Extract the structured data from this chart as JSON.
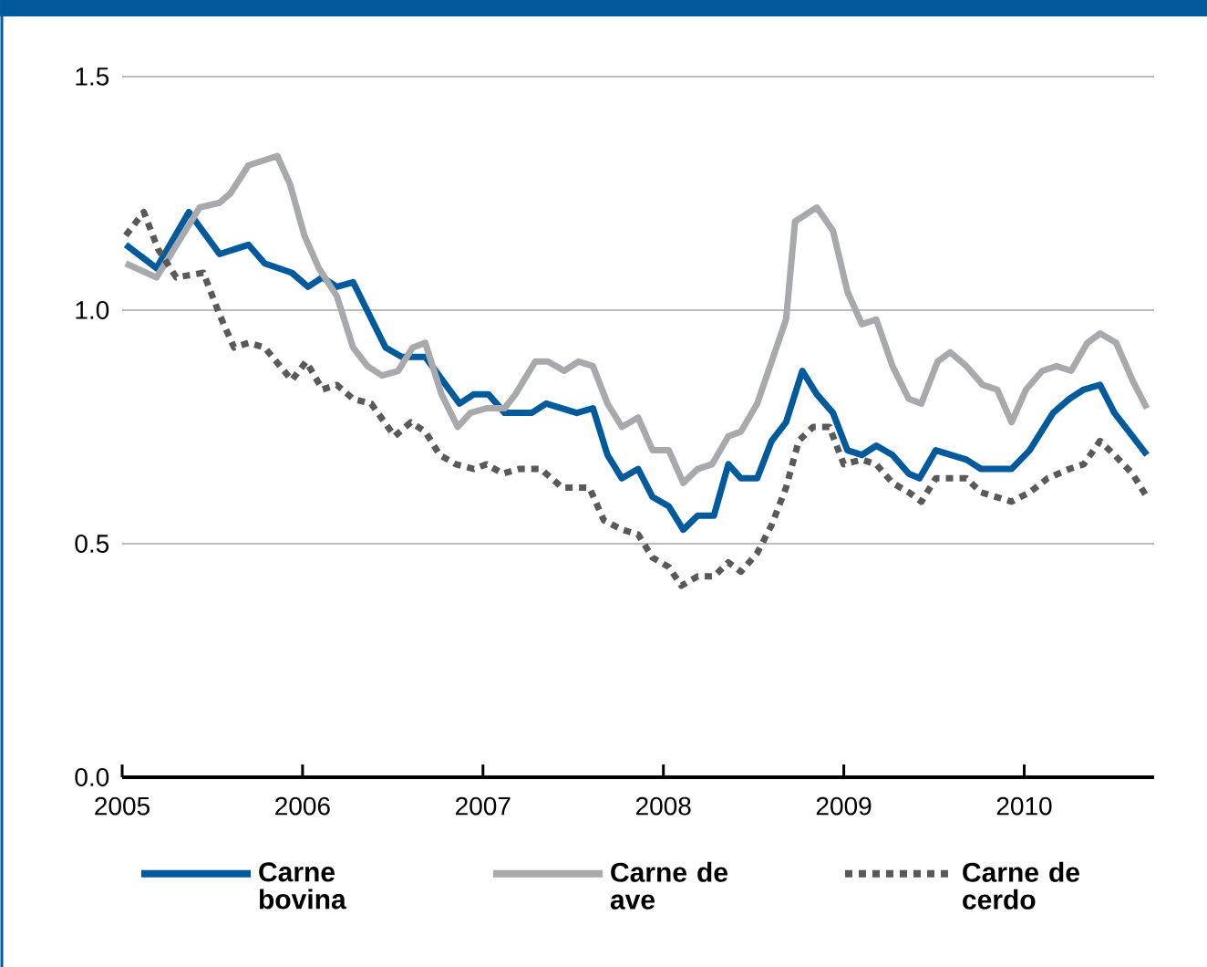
{
  "chart_data": {
    "type": "line",
    "xlim": [
      2005,
      2010.72
    ],
    "xticks": [
      2005,
      2006,
      2007,
      2008,
      2009,
      2010
    ],
    "ylim": [
      0,
      1.5
    ],
    "yticks": [
      {
        "value": 0,
        "label": "0.0"
      },
      {
        "value": 0.5,
        "label": "0.5"
      },
      {
        "value": 1,
        "label": "1.0"
      },
      {
        "value": 1.5,
        "label": "1.5"
      }
    ],
    "grid": "y",
    "legend": "bottom",
    "series": [
      {
        "name": "Carne bovina",
        "color": "#005a9c",
        "line_style": "solid",
        "x": [
          2005.02,
          2005.19,
          2005.37,
          2005.54,
          2005.7,
          2005.79,
          2005.94,
          2006.03,
          2006.11,
          2006.19,
          2006.28,
          2006.46,
          2006.55,
          2006.68,
          2006.87,
          2006.95,
          2007.03,
          2007.12,
          2007.27,
          2007.35,
          2007.52,
          2007.61,
          2007.69,
          2007.77,
          2007.86,
          2007.94,
          2008.03,
          2008.11,
          2008.19,
          2008.28,
          2008.36,
          2008.43,
          2008.52,
          2008.6,
          2008.68,
          2008.77,
          2008.85,
          2008.94,
          2009.02,
          2009.1,
          2009.18,
          2009.27,
          2009.36,
          2009.42,
          2009.51,
          2009.68,
          2009.76,
          2009.93,
          2010.03,
          2010.16,
          2010.25,
          2010.33,
          2010.42,
          2010.5,
          2010.6,
          2010.68
        ],
        "values": [
          1.14,
          1.09,
          1.21,
          1.12,
          1.14,
          1.1,
          1.08,
          1.05,
          1.07,
          1.05,
          1.06,
          0.92,
          0.9,
          0.9,
          0.8,
          0.82,
          0.82,
          0.78,
          0.78,
          0.8,
          0.78,
          0.79,
          0.69,
          0.64,
          0.66,
          0.6,
          0.58,
          0.53,
          0.56,
          0.56,
          0.67,
          0.64,
          0.64,
          0.72,
          0.76,
          0.87,
          0.82,
          0.78,
          0.7,
          0.69,
          0.71,
          0.69,
          0.65,
          0.64,
          0.7,
          0.68,
          0.66,
          0.66,
          0.7,
          0.78,
          0.81,
          0.83,
          0.84,
          0.78,
          0.73,
          0.69
        ]
      },
      {
        "name": "Carne de ave",
        "color": "#a7a9ac",
        "line_style": "solid",
        "x": [
          2005.02,
          2005.19,
          2005.43,
          2005.54,
          2005.6,
          2005.7,
          2005.86,
          2005.93,
          2006.01,
          2006.09,
          2006.19,
          2006.28,
          2006.36,
          2006.44,
          2006.53,
          2006.61,
          2006.68,
          2006.77,
          2006.86,
          2006.93,
          2007.02,
          2007.12,
          2007.18,
          2007.29,
          2007.36,
          2007.45,
          2007.53,
          2007.61,
          2007.69,
          2007.77,
          2007.86,
          2007.94,
          2008.03,
          2008.11,
          2008.19,
          2008.27,
          2008.36,
          2008.43,
          2008.52,
          2008.6,
          2008.68,
          2008.73,
          2008.85,
          2008.94,
          2009.02,
          2009.1,
          2009.18,
          2009.27,
          2009.36,
          2009.43,
          2009.52,
          2009.59,
          2009.68,
          2009.77,
          2009.85,
          2009.93,
          2010.01,
          2010.1,
          2010.18,
          2010.26,
          2010.35,
          2010.42,
          2010.51,
          2010.6,
          2010.68
        ],
        "values": [
          1.1,
          1.07,
          1.22,
          1.23,
          1.25,
          1.31,
          1.33,
          1.27,
          1.16,
          1.09,
          1.03,
          0.92,
          0.88,
          0.86,
          0.87,
          0.92,
          0.93,
          0.82,
          0.75,
          0.78,
          0.79,
          0.79,
          0.82,
          0.89,
          0.89,
          0.87,
          0.89,
          0.88,
          0.8,
          0.75,
          0.77,
          0.7,
          0.7,
          0.63,
          0.66,
          0.67,
          0.73,
          0.74,
          0.8,
          0.89,
          0.98,
          1.19,
          1.22,
          1.17,
          1.04,
          0.97,
          0.98,
          0.88,
          0.81,
          0.8,
          0.89,
          0.91,
          0.88,
          0.84,
          0.83,
          0.76,
          0.83,
          0.87,
          0.88,
          0.87,
          0.93,
          0.95,
          0.93,
          0.85,
          0.79
        ]
      },
      {
        "name": "Carne de cerdo",
        "color": "#58595b",
        "line_style": "dashed",
        "x": [
          2005.02,
          2005.12,
          2005.2,
          2005.3,
          2005.45,
          2005.54,
          2005.62,
          2005.7,
          2005.79,
          2005.94,
          2006.02,
          2006.11,
          2006.19,
          2006.28,
          2006.38,
          2006.51,
          2006.6,
          2006.68,
          2006.76,
          2006.85,
          2006.95,
          2007.02,
          2007.11,
          2007.2,
          2007.32,
          2007.44,
          2007.59,
          2007.67,
          2007.77,
          2007.86,
          2007.94,
          2008.03,
          2008.1,
          2008.19,
          2008.28,
          2008.36,
          2008.43,
          2008.52,
          2008.6,
          2008.68,
          2008.75,
          2008.83,
          2008.92,
          2009.0,
          2009.1,
          2009.18,
          2009.27,
          2009.36,
          2009.43,
          2009.51,
          2009.68,
          2009.76,
          2009.93,
          2010.03,
          2010.13,
          2010.25,
          2010.33,
          2010.42,
          2010.5,
          2010.6,
          2010.68
        ],
        "values": [
          1.16,
          1.21,
          1.13,
          1.07,
          1.08,
          0.99,
          0.92,
          0.93,
          0.92,
          0.85,
          0.89,
          0.83,
          0.84,
          0.81,
          0.8,
          0.73,
          0.76,
          0.74,
          0.69,
          0.67,
          0.66,
          0.67,
          0.65,
          0.66,
          0.66,
          0.62,
          0.62,
          0.55,
          0.53,
          0.52,
          0.47,
          0.45,
          0.41,
          0.43,
          0.43,
          0.46,
          0.44,
          0.48,
          0.54,
          0.62,
          0.72,
          0.75,
          0.75,
          0.67,
          0.68,
          0.67,
          0.63,
          0.61,
          0.59,
          0.64,
          0.64,
          0.61,
          0.59,
          0.61,
          0.64,
          0.66,
          0.67,
          0.72,
          0.69,
          0.65,
          0.6
        ]
      }
    ]
  }
}
